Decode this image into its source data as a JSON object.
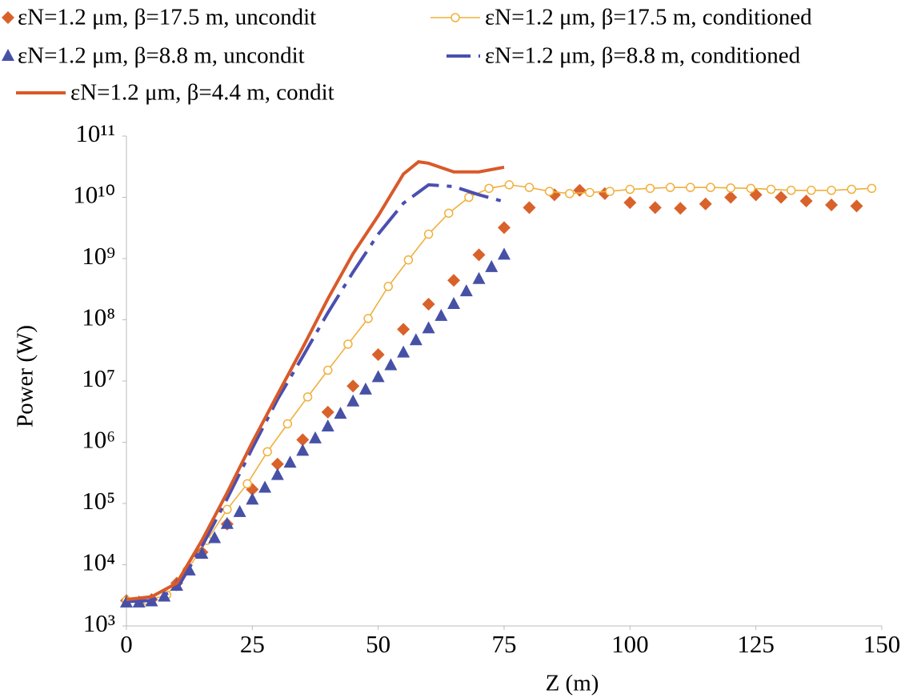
{
  "chart_data": {
    "type": "line",
    "log_scale_y": true,
    "grid": false,
    "legend": "top",
    "xlabel": "Z (m)",
    "ylabel": "Power (W)",
    "xlim": [
      0,
      150
    ],
    "xticks": [
      0,
      25,
      50,
      75,
      100,
      125,
      150
    ],
    "ylim": [
      1000,
      100000000000
    ],
    "yticks": [
      {
        "value": 1000,
        "label": "10³"
      },
      {
        "value": 10000,
        "label": "10⁴"
      },
      {
        "value": 100000,
        "label": "10⁵"
      },
      {
        "value": 1000000,
        "label": "10⁶"
      },
      {
        "value": 10000000,
        "label": "10⁷"
      },
      {
        "value": 100000000,
        "label": "10⁸"
      },
      {
        "value": 1000000000,
        "label": "10⁹"
      },
      {
        "value": 10000000000,
        "label": "10¹⁰"
      },
      {
        "value": 100000000000,
        "label": "10¹¹"
      }
    ],
    "series": [
      {
        "name": "εN=1.2 μm, β=17.5 m, uncondit",
        "color": "#d9622b",
        "marker": "diamond",
        "line": "none",
        "x": [
          0,
          5,
          10,
          15,
          20,
          25,
          30,
          35,
          40,
          45,
          50,
          55,
          60,
          65,
          70,
          75,
          80,
          85,
          90,
          95,
          100,
          105,
          110,
          115,
          120,
          125,
          130,
          135,
          140,
          145
        ],
        "values": [
          2600,
          2700,
          5000,
          16000,
          46000,
          170000,
          440000,
          1100000,
          3100000,
          8300000,
          27000000,
          70000000,
          180000000,
          440000000,
          1150000000,
          3200000000,
          6800000000,
          11000000000,
          13000000000,
          11500000000,
          8200000000,
          6800000000,
          6600000000,
          7800000000,
          10000000000,
          11000000000,
          10000000000,
          8700000000,
          7500000000,
          7200000000
        ]
      },
      {
        "name": "εN=1.2 μm, β=17.5 m, conditioned",
        "color": "#f0b03c",
        "marker": "circle",
        "line": "solid",
        "x": [
          0,
          4,
          8,
          12,
          16,
          20,
          24,
          28,
          32,
          36,
          40,
          44,
          48,
          52,
          56,
          60,
          64,
          68,
          72,
          76,
          80,
          84,
          88,
          92,
          96,
          100,
          104,
          108,
          112,
          116,
          120,
          124,
          128,
          132,
          136,
          140,
          144,
          148
        ],
        "values": [
          2600,
          2600,
          3200,
          8000,
          25000,
          80000,
          210000,
          700000,
          2000000,
          5500000,
          15000000,
          40000000,
          105000000,
          350000000,
          950000000,
          2500000000,
          5500000000,
          10000000000,
          14000000000,
          16000000000,
          14500000000,
          12500000000,
          11500000000,
          12000000000,
          12500000000,
          13500000000,
          14000000000,
          14500000000,
          14500000000,
          14500000000,
          14200000000,
          14000000000,
          13500000000,
          13000000000,
          13000000000,
          13000000000,
          13500000000,
          14000000000
        ]
      },
      {
        "name": "εN=1.2 μm, β=8.8 m, uncondit",
        "color": "#4651a6",
        "marker": "triangle",
        "line": "none",
        "x": [
          0,
          2.5,
          5,
          7.5,
          10,
          12.5,
          15,
          17.5,
          20,
          22.5,
          25,
          27.5,
          30,
          32.5,
          35,
          37.5,
          40,
          42.5,
          45,
          47.5,
          50,
          52.5,
          55,
          57.5,
          60,
          62.5,
          65,
          67.5,
          70,
          72.5,
          75
        ],
        "values": [
          2400,
          2400,
          2500,
          3000,
          4500,
          8000,
          15000,
          27000,
          46000,
          72000,
          115000,
          180000,
          290000,
          460000,
          720000,
          1150000,
          1800000,
          2900000,
          4600000,
          7200000,
          11500000,
          18000000,
          29000000,
          46000000,
          72000000,
          115000000,
          180000000,
          290000000,
          460000000,
          720000000,
          1150000000
        ]
      },
      {
        "name": "εN=1.2 μm, β=8.8 m, conditioned",
        "color": "#4a4fb0",
        "marker": "none",
        "line": "dash",
        "x": [
          0,
          5,
          10,
          15,
          20,
          25,
          30,
          35,
          40,
          45,
          50,
          55,
          60,
          65,
          70,
          75
        ],
        "values": [
          2500,
          2600,
          4000,
          20000,
          120000,
          800000,
          5000000,
          25000000,
          130000000,
          600000000,
          2500000000,
          8000000000,
          16000000000,
          15000000000,
          11000000000,
          8500000000
        ]
      },
      {
        "name": "εN=1.2 μm, β=4.4 m, condit",
        "color": "#d85a2a",
        "marker": "none",
        "line": "solid",
        "x": [
          0,
          5,
          10,
          15,
          20,
          25,
          30,
          35,
          40,
          45,
          50,
          55,
          58,
          60,
          65,
          70,
          75
        ],
        "values": [
          2700,
          3000,
          5000,
          25000,
          150000,
          1000000,
          6000000,
          35000000,
          220000000,
          1200000000,
          5000000000,
          24000000000,
          38000000000,
          36000000000,
          26000000000,
          26000000000,
          31000000000
        ]
      }
    ]
  }
}
